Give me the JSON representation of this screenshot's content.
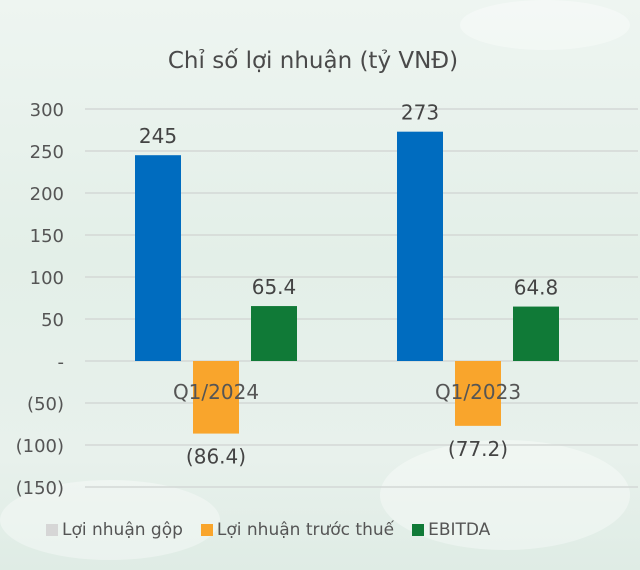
{
  "chart_data": {
    "type": "bar",
    "title": "Chỉ số lợi nhuận (tỷ VNĐ)",
    "categories": [
      "Q1/2024",
      "Q1/2023"
    ],
    "series": [
      {
        "name": "Lợi nhuận gộp",
        "values": [
          245,
          273
        ],
        "labels": [
          "245",
          "273"
        ],
        "color": "#006cbf",
        "legend_color": "#d6d6d6"
      },
      {
        "name": "Lợi nhuận trước thuế",
        "values": [
          -86.4,
          -77.2
        ],
        "labels": [
          "(86.4)",
          "(77.2)"
        ],
        "color": "#f9a52c",
        "legend_color": "#f9a52c"
      },
      {
        "name": "EBITDA",
        "values": [
          65.4,
          64.8
        ],
        "labels": [
          "65.4",
          "64.8"
        ],
        "color": "#107a37",
        "legend_color": "#107a37"
      }
    ],
    "ylim": [
      -150,
      300
    ],
    "yticks": [
      300,
      250,
      200,
      150,
      100,
      50,
      0,
      -50,
      -100,
      -150
    ],
    "ytick_labels": [
      "300",
      "250",
      "200",
      "150",
      "100",
      "50",
      "-",
      "(50)",
      "(100)",
      "(150)"
    ],
    "grid": true,
    "legend_position": "bottom"
  }
}
